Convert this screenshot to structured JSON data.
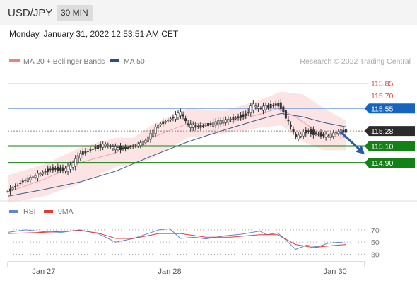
{
  "header": {
    "symbol": "USD/JPY",
    "timeframe": "30 MIN"
  },
  "timestamp": "Monday, January 31, 2022 12:53:51 AM CET",
  "credit": "Research © 2022 Trading Central",
  "colors": {
    "resistance": "#e8413c",
    "pivot": "#1565c0",
    "current": "#2b2b2b",
    "support": "#158015",
    "ma50": "#3c5a8c",
    "band": "#fcd2d2",
    "ma20": "#f3a2a2",
    "rsi": "#5f86cf",
    "rsi_ma": "#e53935"
  },
  "chart_data": [
    {
      "type": "candlestick",
      "legend": [
        {
          "label": "MA 20 + Bollinger Bands",
          "color": "#f08080"
        },
        {
          "label": "MA 50",
          "color": "#2b4d8c"
        }
      ],
      "ylim": [
        114.52,
        116.06
      ],
      "x_ticks": [
        {
          "label": "Jan 27",
          "x": 0.1
        },
        {
          "label": "Jan 28",
          "x": 0.45
        },
        {
          "label": "Jan 30",
          "x": 0.91
        }
      ],
      "levels": [
        {
          "value": 115.85,
          "label": "115.85",
          "kind": "resistance"
        },
        {
          "value": 115.7,
          "label": "115.70",
          "kind": "resistance"
        },
        {
          "value": 115.55,
          "label": "115.55",
          "kind": "pivot"
        },
        {
          "value": 115.28,
          "label": "115.28",
          "kind": "current"
        },
        {
          "value": 115.1,
          "label": "115.10",
          "kind": "support"
        },
        {
          "value": 114.9,
          "label": "114.90",
          "kind": "support"
        }
      ],
      "price_path": [
        [
          0.0,
          114.56
        ],
        [
          0.04,
          114.68
        ],
        [
          0.08,
          114.75
        ],
        [
          0.12,
          114.83
        ],
        [
          0.16,
          114.82
        ],
        [
          0.18,
          114.88
        ],
        [
          0.2,
          115.0
        ],
        [
          0.23,
          115.06
        ],
        [
          0.27,
          115.12
        ],
        [
          0.29,
          115.08
        ],
        [
          0.32,
          115.07
        ],
        [
          0.35,
          115.1
        ],
        [
          0.38,
          115.15
        ],
        [
          0.42,
          115.36
        ],
        [
          0.45,
          115.42
        ],
        [
          0.48,
          115.5
        ],
        [
          0.5,
          115.35
        ],
        [
          0.53,
          115.33
        ],
        [
          0.57,
          115.37
        ],
        [
          0.62,
          115.42
        ],
        [
          0.66,
          115.47
        ],
        [
          0.68,
          115.59
        ],
        [
          0.7,
          115.55
        ],
        [
          0.73,
          115.58
        ],
        [
          0.75,
          115.6
        ],
        [
          0.76,
          115.56
        ],
        [
          0.78,
          115.38
        ],
        [
          0.8,
          115.2
        ],
        [
          0.83,
          115.28
        ],
        [
          0.86,
          115.24
        ],
        [
          0.89,
          115.22
        ],
        [
          0.92,
          115.27
        ],
        [
          0.94,
          115.28
        ]
      ],
      "ma20": [
        [
          0.0,
          114.55
        ],
        [
          0.1,
          114.7
        ],
        [
          0.2,
          114.9
        ],
        [
          0.3,
          115.02
        ],
        [
          0.4,
          115.2
        ],
        [
          0.5,
          115.37
        ],
        [
          0.6,
          115.37
        ],
        [
          0.7,
          115.48
        ],
        [
          0.75,
          115.55
        ],
        [
          0.8,
          115.45
        ],
        [
          0.85,
          115.3
        ],
        [
          0.9,
          115.22
        ],
        [
          0.94,
          115.2
        ]
      ],
      "band_upper": [
        [
          0.0,
          114.75
        ],
        [
          0.1,
          114.88
        ],
        [
          0.2,
          115.08
        ],
        [
          0.3,
          115.2
        ],
        [
          0.35,
          115.2
        ],
        [
          0.4,
          115.35
        ],
        [
          0.5,
          115.55
        ],
        [
          0.6,
          115.52
        ],
        [
          0.7,
          115.65
        ],
        [
          0.76,
          115.75
        ],
        [
          0.82,
          115.72
        ],
        [
          0.88,
          115.55
        ],
        [
          0.94,
          115.4
        ]
      ],
      "band_lower": [
        [
          0.0,
          114.42
        ],
        [
          0.1,
          114.5
        ],
        [
          0.2,
          114.65
        ],
        [
          0.3,
          114.85
        ],
        [
          0.35,
          114.88
        ],
        [
          0.4,
          114.95
        ],
        [
          0.5,
          115.2
        ],
        [
          0.6,
          115.25
        ],
        [
          0.7,
          115.32
        ],
        [
          0.76,
          115.35
        ],
        [
          0.82,
          115.15
        ],
        [
          0.88,
          115.05
        ],
        [
          0.94,
          115.05
        ]
      ],
      "ma50": [
        [
          0.0,
          114.5
        ],
        [
          0.1,
          114.58
        ],
        [
          0.2,
          114.67
        ],
        [
          0.3,
          114.8
        ],
        [
          0.4,
          114.98
        ],
        [
          0.5,
          115.15
        ],
        [
          0.6,
          115.29
        ],
        [
          0.7,
          115.42
        ],
        [
          0.76,
          115.49
        ],
        [
          0.82,
          115.45
        ],
        [
          0.88,
          115.38
        ],
        [
          0.94,
          115.33
        ]
      ],
      "projection": {
        "from": [
          0.925,
          115.27
        ],
        "to": [
          0.985,
          115.03
        ]
      }
    },
    {
      "type": "line",
      "legend": [
        {
          "label": "RSI",
          "color": "#5f86cf"
        },
        {
          "label": "9MA",
          "color": "#e53935"
        }
      ],
      "ylim": [
        20,
        85
      ],
      "y_ticks": [
        70,
        50,
        30
      ],
      "series": [
        {
          "name": "RSI",
          "values": [
            [
              0.0,
              66
            ],
            [
              0.05,
              70
            ],
            [
              0.1,
              67
            ],
            [
              0.15,
              66
            ],
            [
              0.2,
              70
            ],
            [
              0.25,
              64
            ],
            [
              0.3,
              50
            ],
            [
              0.35,
              56
            ],
            [
              0.38,
              62
            ],
            [
              0.42,
              70
            ],
            [
              0.45,
              72
            ],
            [
              0.48,
              56
            ],
            [
              0.52,
              58
            ],
            [
              0.55,
              55
            ],
            [
              0.6,
              60
            ],
            [
              0.65,
              63
            ],
            [
              0.7,
              68
            ],
            [
              0.72,
              62
            ],
            [
              0.75,
              65
            ],
            [
              0.77,
              55
            ],
            [
              0.8,
              38
            ],
            [
              0.83,
              45
            ],
            [
              0.86,
              42
            ],
            [
              0.89,
              48
            ],
            [
              0.92,
              50
            ],
            [
              0.94,
              48
            ]
          ]
        },
        {
          "name": "9MA",
          "values": [
            [
              0.0,
              64
            ],
            [
              0.1,
              66
            ],
            [
              0.2,
              69
            ],
            [
              0.25,
              65
            ],
            [
              0.3,
              56
            ],
            [
              0.35,
              56
            ],
            [
              0.42,
              64
            ],
            [
              0.48,
              64
            ],
            [
              0.55,
              58
            ],
            [
              0.62,
              58
            ],
            [
              0.7,
              62
            ],
            [
              0.75,
              62
            ],
            [
              0.8,
              46
            ],
            [
              0.85,
              41
            ],
            [
              0.9,
              44
            ],
            [
              0.94,
              46
            ]
          ]
        }
      ]
    }
  ]
}
